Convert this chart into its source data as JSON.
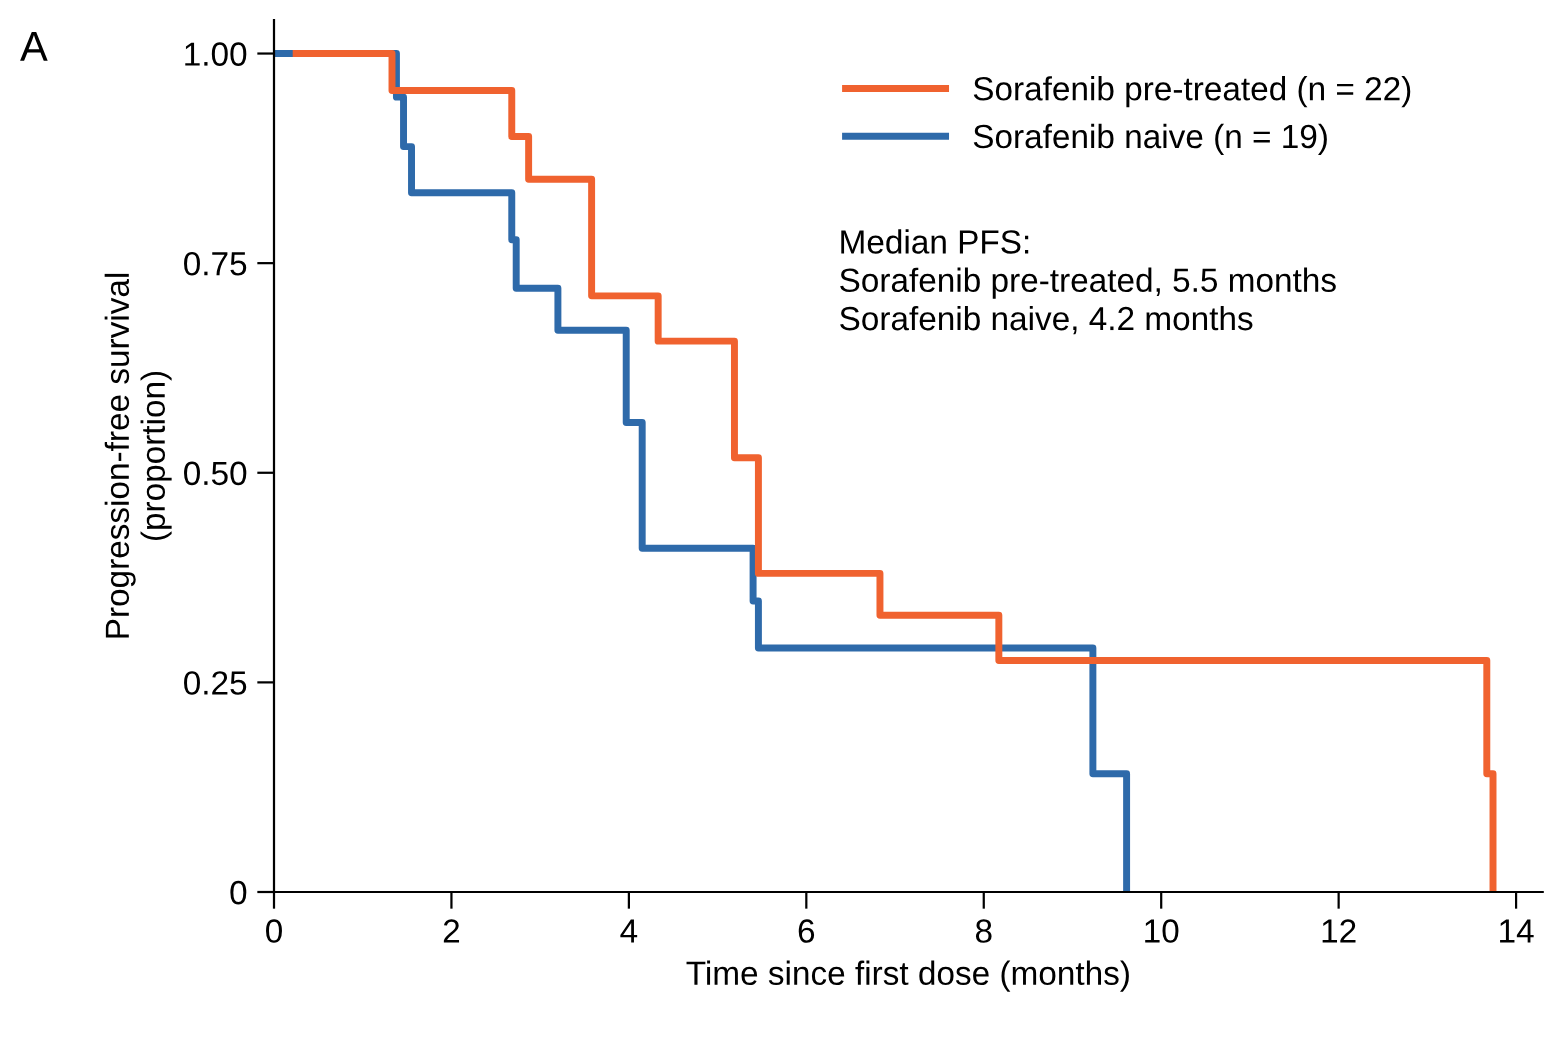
{
  "chart_data": {
    "type": "step",
    "xlabel": "Time since first dose (months)",
    "ylabel": "Progression-free survival\n(proportion)",
    "annotations": [
      "A",
      "Median PFS:\nSorafenib pre-treated, 5.5 months\nSorafenib naive, 4.2 months"
    ],
    "series": [
      {
        "name": "Sorafenib naive (n = 19)",
        "color": "#2e6aaa",
        "x": [
          0,
          1.38,
          1.46,
          1.55,
          2.68,
          2.73,
          3.2,
          3.97,
          4.15,
          5.4,
          5.46,
          9.23,
          9.61
        ],
        "values": [
          1.0,
          0.948,
          0.889,
          0.834,
          0.778,
          0.72,
          0.67,
          0.56,
          0.41,
          0.347,
          0.291,
          0.141,
          0
        ]
      },
      {
        "name": "Sorafenib pre-treated (n = 22)",
        "color": "#f0622f",
        "x": [
          0.25,
          1.33,
          2.68,
          2.87,
          3.58,
          4.33,
          5.19,
          5.46,
          6.83,
          8.17,
          13.67,
          13.74
        ],
        "values": [
          1.0,
          0.956,
          0.901,
          0.85,
          0.711,
          0.657,
          0.518,
          0.38,
          0.33,
          0.276,
          0.141,
          0
        ]
      }
    ],
    "xlim": [
      0,
      14.3
    ],
    "ylim": [
      0,
      1.04
    ],
    "xticks": [
      0,
      2,
      4,
      6,
      8,
      10,
      12,
      14
    ],
    "yticks": [
      0,
      {
        "value": 0.25,
        "label": "0.25"
      },
      {
        "value": 0.5,
        "label": "0.50"
      },
      {
        "value": 0.75,
        "label": "0.75"
      },
      {
        "value": 1,
        "label": "1.00"
      }
    ],
    "grid": false,
    "legend": "top right",
    "line_style": "solid",
    "marker": "none"
  }
}
